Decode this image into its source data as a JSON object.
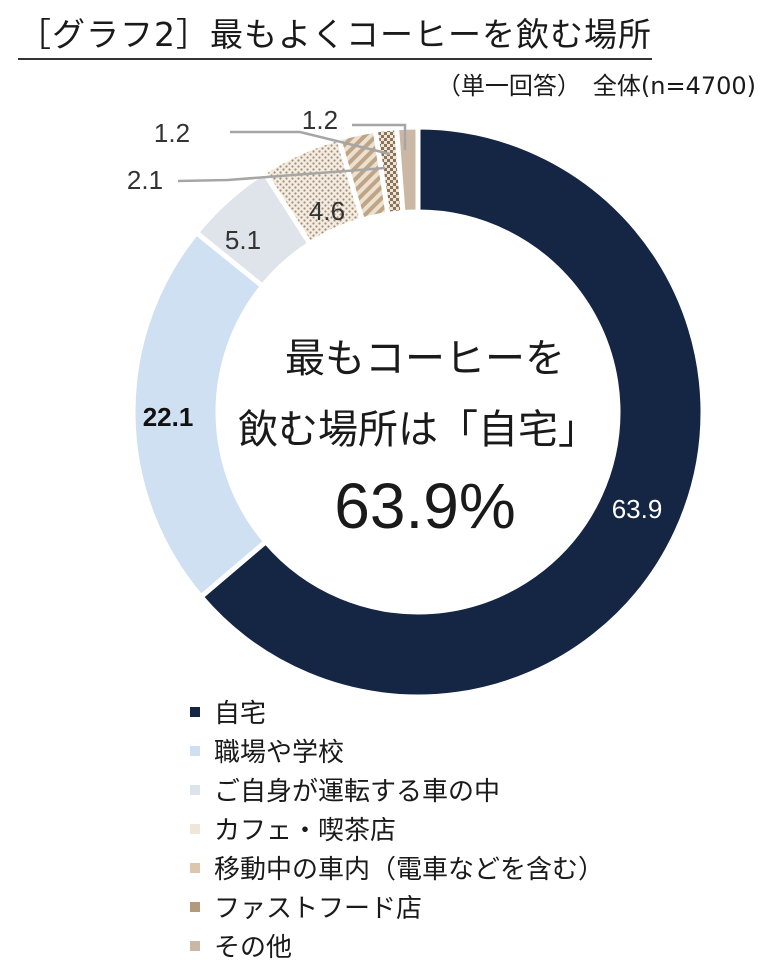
{
  "title": "［グラフ2］最もよくコーヒーを飲む場所",
  "subtitle": "（単一回答）　全体(n=4700)",
  "colors": {
    "home": "#152544",
    "work": "#cfe0f3",
    "car": "#dde3ea",
    "cafe": "#efe5d8",
    "transit": "#dcc7ae",
    "fastfood": "#b49a7c",
    "other": "#cbb8a4"
  },
  "center_text": {
    "line1": "最もコーヒーを",
    "line2": "飲む場所は「自宅」",
    "value": "63.9%"
  },
  "chart_data": {
    "type": "pie",
    "variant": "donut",
    "categories": [
      "自宅",
      "職場や学校",
      "ご自身が運転する車の中",
      "カフェ・喫茶店",
      "移動中の車内（電車などを含む）",
      "ファストフード店",
      "その他"
    ],
    "values": [
      63.9,
      22.1,
      5.1,
      4.6,
      2.1,
      1.2,
      1.2
    ],
    "data_labels": [
      "63.9",
      "22.1",
      "5.1",
      "4.6",
      "2.1",
      "1.2",
      "1.2"
    ],
    "legend_position": "bottom"
  }
}
